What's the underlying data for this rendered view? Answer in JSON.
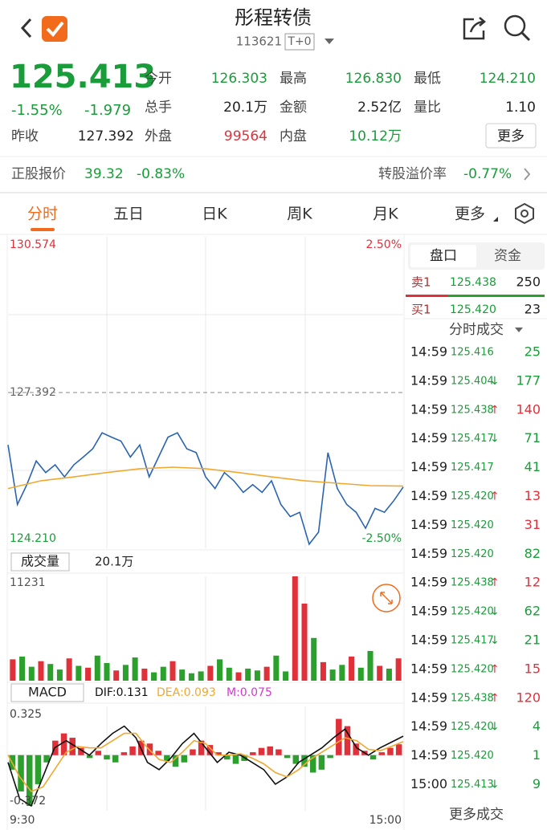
{
  "header": {
    "title": "彤程转债",
    "code": "113621",
    "trade_mode": "T+0"
  },
  "quote": {
    "price": "125.413",
    "change_pct": "-1.55%",
    "change": "-1.979",
    "prev_close": {
      "label": "昨收",
      "value": "127.392",
      "color": "#222222"
    },
    "fields": [
      {
        "label": "今开",
        "value": "126.303",
        "color": "#1a9c3a"
      },
      {
        "label": "最高",
        "value": "126.830",
        "color": "#1a9c3a"
      },
      {
        "label": "最低",
        "value": "124.210",
        "color": "#1a9c3a"
      },
      {
        "label": "总手",
        "value": "20.1万",
        "color": "#222222"
      },
      {
        "label": "金额",
        "value": "2.52亿",
        "color": "#222222"
      },
      {
        "label": "量比",
        "value": "1.10",
        "color": "#222222"
      },
      {
        "label": "外盘",
        "value": "99564",
        "color": "#e0303a"
      },
      {
        "label": "内盘",
        "value": "10.12万",
        "color": "#1a9c3a"
      }
    ],
    "more": "更多"
  },
  "stock": {
    "label": "正股报价",
    "price": "39.32",
    "change": "-0.83%"
  },
  "premium": {
    "label": "转股溢价率",
    "value": "-0.77%"
  },
  "tabs": {
    "items": [
      "分时",
      "五日",
      "日K",
      "周K",
      "月K",
      "更多"
    ],
    "active": 0
  },
  "side_panel": {
    "tabs": [
      "盘口",
      "资金"
    ],
    "ask": {
      "label": "卖1",
      "price": "125.438",
      "volume": "250"
    },
    "bid": {
      "label": "买1",
      "price": "125.420",
      "volume": "23"
    },
    "trades_title": "分时成交",
    "trades": [
      {
        "time": "14:59",
        "price": "125.416",
        "volume": "25",
        "color": "#1a9c3a"
      },
      {
        "time": "14:59",
        "price": "125.404",
        "arrow": "↓",
        "volume": "177",
        "color": "#1a9c3a"
      },
      {
        "time": "14:59",
        "price": "125.438",
        "arrow": "↑",
        "volume": "140",
        "color": "#e0303a"
      },
      {
        "time": "14:59",
        "price": "125.417",
        "arrow": "↓",
        "volume": "71",
        "color": "#1a9c3a"
      },
      {
        "time": "14:59",
        "price": "125.417",
        "volume": "41",
        "color": "#1a9c3a"
      },
      {
        "time": "14:59",
        "price": "125.420",
        "arrow": "↑",
        "volume": "13",
        "color": "#e0303a"
      },
      {
        "time": "14:59",
        "price": "125.420",
        "volume": "31",
        "color": "#e0303a"
      },
      {
        "time": "14:59",
        "price": "125.420",
        "volume": "82",
        "color": "#1a9c3a"
      },
      {
        "time": "14:59",
        "price": "125.438",
        "arrow": "↑",
        "volume": "12",
        "color": "#e0303a"
      },
      {
        "time": "14:59",
        "price": "125.420",
        "arrow": "↓",
        "volume": "62",
        "color": "#1a9c3a"
      },
      {
        "time": "14:59",
        "price": "125.417",
        "arrow": "↓",
        "volume": "21",
        "color": "#1a9c3a"
      },
      {
        "time": "14:59",
        "price": "125.420",
        "arrow": "↑",
        "volume": "15",
        "color": "#e0303a"
      },
      {
        "time": "14:59",
        "price": "125.438",
        "arrow": "↑",
        "volume": "120",
        "color": "#e0303a"
      },
      {
        "time": "14:59",
        "price": "125.420",
        "arrow": "↓",
        "volume": "4",
        "color": "#1a9c3a"
      },
      {
        "time": "14:59",
        "price": "125.420",
        "volume": "1",
        "color": "#1a9c3a"
      },
      {
        "time": "15:00",
        "price": "125.413",
        "arrow": "↓",
        "volume": "9",
        "color": "#1a9c3a"
      }
    ],
    "more": "更多成交"
  },
  "chart_data": [
    {
      "type": "line",
      "ylim": [
        124.21,
        130.574
      ],
      "yticks": [
        {
          "value": 124.21,
          "label": "124.210"
        },
        127.392,
        130.574
      ],
      "y2lim": [
        -2.5,
        2.5
      ],
      "y2ticks": [
        {
          "value": -2.5,
          "label": "-2.50%"
        },
        {
          "value": 2.5,
          "label": "2.50%"
        }
      ],
      "series": [
        {
          "color": "#2a64b0",
          "values": [
            126.31,
            125.08,
            125.49,
            125.98,
            125.74,
            125.9,
            125.65,
            125.9,
            126.06,
            126.23,
            126.56,
            126.47,
            126.39,
            126.06,
            126.31,
            125.65,
            126.06,
            126.47,
            126.56,
            126.23,
            126.15,
            125.65,
            125.41,
            125.74,
            125.57,
            125.33,
            125.49,
            125.33,
            125.57,
            125.08,
            124.83,
            124.92,
            124.26,
            124.51,
            126.15,
            125.41,
            125.08,
            124.92,
            124.59,
            125.0,
            124.92,
            125.16,
            125.44
          ]
        },
        {
          "color": "#f0a830",
          "values": [
            125.41,
            125.57,
            125.65,
            125.74,
            125.82,
            125.85,
            125.82,
            125.74,
            125.65,
            125.57,
            125.52,
            125.47,
            125.46
          ]
        }
      ]
    },
    {
      "type": "bar",
      "title": "成交量",
      "subtitle": "20.1万",
      "ylim": [
        0,
        11231
      ],
      "yticks": [
        11231
      ],
      "values": [
        2300,
        2600,
        1500,
        2100,
        1800,
        1200,
        2400,
        1600,
        1400,
        2700,
        1900,
        1100,
        1700,
        2500,
        1300,
        900,
        1500,
        2100,
        1200,
        800,
        1000,
        1600,
        2300,
        1400,
        900,
        1300,
        1100,
        1500,
        2700,
        1000,
        11231,
        8300,
        4600,
        2000,
        1200,
        1700,
        2600,
        1400,
        3200,
        1600,
        1300,
        2400
      ],
      "bar_colors": [
        "#e0303a",
        "#2ca02c",
        "#2ca02c",
        "#e0303a",
        "#2ca02c",
        "#2ca02c",
        "#e0303a",
        "#2ca02c",
        "#e0303a",
        "#2ca02c",
        "#2ca02c",
        "#e0303a",
        "#2ca02c",
        "#2ca02c",
        "#e0303a",
        "#2ca02c",
        "#2ca02c",
        "#e0303a",
        "#2ca02c",
        "#2ca02c",
        "#2ca02c",
        "#e0303a",
        "#2ca02c",
        "#2ca02c",
        "#e0303a",
        "#2ca02c",
        "#2ca02c",
        "#e0303a",
        "#2ca02c",
        "#2ca02c",
        "#e0303a",
        "#e0303a",
        "#2ca02c",
        "#e0303a",
        "#2ca02c",
        "#2ca02c",
        "#e0303a",
        "#2ca02c",
        "#2ca02c",
        "#e0303a",
        "#2ca02c",
        "#e0303a"
      ]
    },
    {
      "type": "macd",
      "title": "MACD",
      "ylim": [
        -0.372,
        0.325
      ],
      "yticks": [
        -0.372,
        0.325
      ],
      "x_labels": [
        "9:30",
        "15:00"
      ],
      "up_color": "#e0303a",
      "down_color": "#2ca02c",
      "series": [
        {
          "name": "DIF:0.131",
          "color": "#111111",
          "values": [
            -0.05,
            -0.3,
            -0.35,
            -0.15,
            0.05,
            0.1,
            0.05,
            0.0,
            0.08,
            0.15,
            0.2,
            0.12,
            -0.05,
            -0.1,
            -0.02,
            0.08,
            0.15,
            0.05,
            -0.05,
            0.02,
            0.0,
            -0.05,
            -0.1,
            -0.2,
            -0.15,
            -0.05,
            0.0,
            0.05,
            0.12,
            0.18,
            0.05,
            0.0,
            0.05,
            0.09,
            0.131
          ]
        },
        {
          "name": "DEA:0.093",
          "color": "#f0a830",
          "values": [
            0.0,
            -0.15,
            -0.25,
            -0.22,
            -0.1,
            0.02,
            0.06,
            0.05,
            0.05,
            0.1,
            0.15,
            0.15,
            0.05,
            -0.03,
            -0.05,
            0.02,
            0.1,
            0.08,
            0.0,
            0.0,
            0.01,
            -0.02,
            -0.06,
            -0.12,
            -0.15,
            -0.1,
            -0.03,
            0.02,
            0.07,
            0.12,
            0.1,
            0.04,
            0.03,
            0.06,
            0.093
          ]
        },
        {
          "name": "M:0.075",
          "color": "#d03ad0",
          "bars": true,
          "values": [
            -0.1,
            -0.25,
            -0.35,
            -0.2,
            -0.05,
            0.1,
            0.15,
            0.12,
            0.05,
            -0.02,
            0.03,
            -0.03,
            -0.05,
            0.02,
            0.06,
            0.1,
            0.08,
            0.03,
            -0.04,
            -0.08,
            -0.05,
            0.04,
            0.1,
            0.07,
            0.02,
            -0.03,
            -0.06,
            -0.04,
            0.02,
            0.05,
            0.06,
            0.04,
            -0.02,
            -0.06,
            -0.08,
            -0.12,
            -0.1,
            -0.02,
            0.25,
            0.2,
            0.08,
            0.03,
            -0.03,
            0.02,
            0.05,
            0.075
          ]
        }
      ]
    }
  ]
}
